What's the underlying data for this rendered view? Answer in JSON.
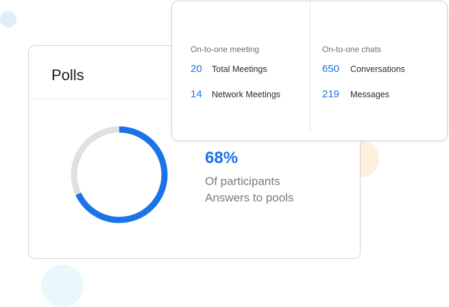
{
  "polls": {
    "title": "Polls",
    "percent_label": "68%",
    "progress": 0.68,
    "caption_line1": "Of participants",
    "caption_line2": "Answers to pools"
  },
  "meetings": {
    "heading": "On-to-one meeting",
    "stats": [
      {
        "value": "20",
        "label": "Total Meetings"
      },
      {
        "value": "14",
        "label": "Network Meetings"
      }
    ]
  },
  "chats": {
    "heading": "On-to-one chats",
    "stats": [
      {
        "value": "650",
        "label": "Conversations"
      },
      {
        "value": "219",
        "label": "Messages"
      }
    ]
  },
  "colors": {
    "accent": "#1a73e8",
    "track": "#e0e0e0"
  }
}
